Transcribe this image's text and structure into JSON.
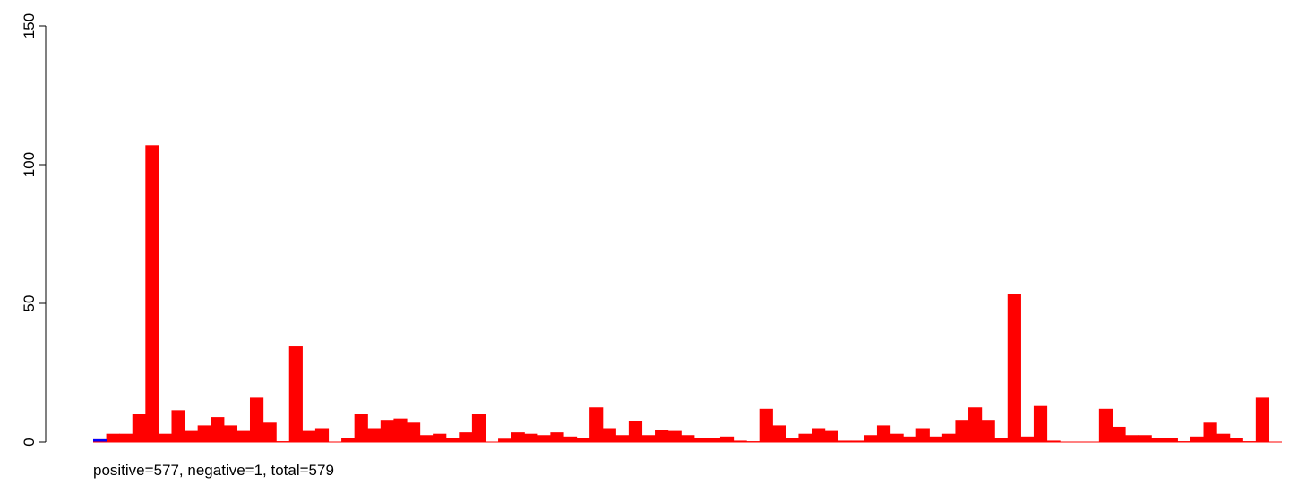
{
  "chart_data": {
    "type": "bar",
    "title": "",
    "xlabel": "",
    "ylabel": "",
    "caption": "positive=577, negative=1, total=579",
    "ylim": [
      0,
      150
    ],
    "y_ticks": [
      "0",
      "50",
      "100",
      "150"
    ],
    "series": [
      {
        "color": "#ff0000",
        "values": [
          1,
          3,
          3,
          10,
          107,
          3,
          11.5,
          4,
          6,
          9,
          6,
          4,
          16,
          7,
          0.3,
          34.5,
          4,
          5,
          0,
          1.5,
          10,
          5,
          8,
          8.5,
          7,
          2.5,
          3,
          1.5,
          3.5,
          10,
          0,
          1.2,
          3.5,
          3,
          2.5,
          3.5,
          2,
          1.5,
          12.5,
          5,
          2.5,
          7.5,
          2.5,
          4.5,
          4,
          2.5,
          1.3,
          1.3,
          2,
          0.5,
          0.3,
          12,
          6,
          1.3,
          3,
          5,
          4,
          0.5,
          0.5,
          2.5,
          6,
          3,
          2,
          5,
          2,
          3,
          8,
          12.5,
          8,
          1.5,
          53.5,
          2,
          13,
          0.5,
          0,
          0,
          0,
          12,
          5.5,
          2.5,
          2.5,
          1.5,
          1.3,
          0.3,
          2,
          7,
          3,
          1.3,
          0.3,
          16,
          0
        ]
      },
      {
        "color": "#0000ff",
        "values": [
          1,
          0,
          0,
          0,
          0,
          0,
          0,
          0,
          0,
          0,
          0,
          0,
          0,
          0,
          0,
          0,
          0,
          0,
          0,
          0,
          0,
          0,
          0,
          0,
          0,
          0,
          0,
          0,
          0,
          0,
          0,
          0,
          0,
          0,
          0,
          0,
          0,
          0,
          0,
          0,
          0,
          0,
          0,
          0,
          0,
          0,
          0,
          0,
          0,
          0,
          0,
          0,
          0,
          0,
          0,
          0,
          0,
          0,
          0,
          0,
          0,
          0,
          0,
          0,
          0,
          0,
          0,
          0,
          0,
          0,
          0,
          0,
          0,
          0,
          0,
          0,
          0,
          0,
          0,
          0,
          0,
          0,
          0,
          0,
          0,
          0,
          0,
          0,
          0,
          0,
          0
        ]
      }
    ],
    "grid": false,
    "legend": "none"
  }
}
